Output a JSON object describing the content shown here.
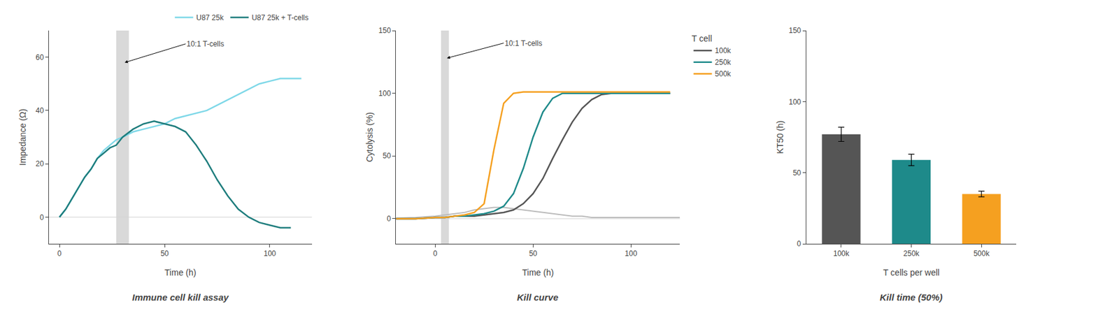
{
  "chart_data": [
    {
      "type": "line",
      "title": "Immune cell kill assay",
      "xlabel": "Time (h)",
      "ylabel": "Impedance (Ω)",
      "xlim": [
        -5,
        120
      ],
      "ylim": [
        -10,
        70
      ],
      "xticks": [
        0,
        50,
        100
      ],
      "yticks": [
        0,
        20,
        40,
        60
      ],
      "grid": false,
      "legend": "top",
      "band": [
        27,
        33
      ],
      "hline": 0,
      "annotations": [
        {
          "text": "10:1 T-cells",
          "x": 31,
          "y": 58,
          "text_x": 60,
          "text_y": 65
        }
      ],
      "series": [
        {
          "name": "U87 25k",
          "color": "#7fd8e8",
          "x": [
            0,
            3,
            6,
            9,
            12,
            15,
            18,
            21,
            24,
            27,
            30,
            35,
            40,
            45,
            50,
            55,
            60,
            65,
            70,
            75,
            80,
            85,
            90,
            95,
            100,
            105,
            110,
            115
          ],
          "values": [
            0,
            3,
            7,
            11,
            15,
            18,
            22,
            25,
            27,
            29,
            30,
            32,
            33,
            34,
            35,
            37,
            38,
            39,
            40,
            42,
            44,
            46,
            48,
            50,
            51,
            52,
            52,
            52
          ]
        },
        {
          "name": "U87 25k + T-cells",
          "color": "#1e7d7d",
          "x": [
            0,
            3,
            6,
            9,
            12,
            15,
            18,
            21,
            24,
            27,
            30,
            35,
            40,
            45,
            50,
            55,
            60,
            65,
            70,
            75,
            80,
            85,
            90,
            95,
            100,
            105,
            110
          ],
          "values": [
            0,
            3,
            7,
            11,
            15,
            18,
            22,
            24,
            26,
            27,
            30,
            33,
            35,
            36,
            35,
            34,
            32,
            27,
            21,
            14,
            8,
            3,
            0,
            -2,
            -3,
            -4,
            -4
          ]
        }
      ]
    },
    {
      "type": "line",
      "title": "Kill curve",
      "xlabel": "Time (h)",
      "ylabel": "Cytolysis (%)",
      "xlim": [
        -20,
        125
      ],
      "ylim": [
        -20,
        150
      ],
      "xticks": [
        0,
        50,
        100
      ],
      "yticks": [
        0,
        50,
        100,
        150
      ],
      "grid": false,
      "legend": "right",
      "legend_title": "T cell",
      "band": [
        3,
        7
      ],
      "hline": 0,
      "annotations": [
        {
          "text": "10:1 T-cells",
          "x": 6,
          "y": 128,
          "text_x": 35,
          "text_y": 140
        }
      ],
      "series": [
        {
          "color": "#bbbbbb",
          "x": [
            -20,
            -10,
            0,
            5,
            10,
            15,
            20,
            25,
            30,
            35,
            40,
            45,
            50,
            55,
            60,
            65,
            70,
            75,
            80,
            85,
            90,
            95,
            100,
            105,
            110,
            115,
            120,
            125
          ],
          "values": [
            0.5,
            1,
            2,
            3,
            4,
            5,
            7,
            8,
            9,
            9,
            8,
            7,
            6,
            5,
            4,
            3,
            2,
            2,
            1,
            1,
            1,
            1,
            1,
            1,
            1,
            1,
            1,
            1
          ]
        },
        {
          "name": "100k",
          "color": "#555555",
          "x": [
            -20,
            -10,
            0,
            5,
            10,
            15,
            20,
            25,
            30,
            35,
            40,
            45,
            50,
            55,
            60,
            65,
            70,
            75,
            80,
            85,
            90,
            95,
            100,
            105,
            110,
            115,
            120
          ],
          "values": [
            0,
            0,
            1,
            1,
            2,
            2,
            2,
            3,
            4,
            5,
            7,
            12,
            20,
            32,
            48,
            63,
            77,
            88,
            95,
            99,
            100,
            100,
            100,
            100,
            100,
            100,
            100
          ]
        },
        {
          "name": "250k",
          "color": "#1e8a8a",
          "x": [
            -20,
            -10,
            0,
            5,
            10,
            15,
            20,
            25,
            30,
            35,
            40,
            45,
            50,
            55,
            60,
            65,
            70,
            75,
            80,
            85,
            90,
            95,
            100,
            105,
            110,
            115,
            120
          ],
          "values": [
            0,
            0,
            1,
            1,
            2,
            2,
            3,
            4,
            6,
            10,
            20,
            40,
            65,
            85,
            96,
            100,
            100,
            100,
            100,
            100,
            100,
            100,
            100,
            100,
            100,
            100,
            100
          ]
        },
        {
          "name": "500k",
          "color": "#f5a020",
          "x": [
            -20,
            -10,
            0,
            5,
            10,
            15,
            20,
            25,
            30,
            35,
            40,
            45,
            50,
            55,
            60,
            65,
            70,
            75,
            80,
            85,
            90,
            95,
            100,
            105,
            110,
            115,
            120
          ],
          "values": [
            0,
            0,
            1,
            1,
            2,
            3,
            5,
            12,
            55,
            92,
            100,
            101,
            101,
            101,
            101,
            101,
            101,
            101,
            101,
            101,
            101,
            101,
            101,
            101,
            101,
            101,
            101
          ]
        }
      ]
    },
    {
      "type": "bar",
      "title": "Kill time (50%)",
      "xlabel": "T cells per well",
      "ylabel": "KT50 (h)",
      "categories": [
        "100k",
        "250k",
        "500k"
      ],
      "values": [
        77,
        59,
        35
      ],
      "errors": [
        5,
        4,
        2
      ],
      "colors": [
        "#555555",
        "#1e8a8a",
        "#f5a020"
      ],
      "ylim": [
        0,
        150
      ],
      "yticks": [
        0,
        50,
        100,
        150
      ],
      "grid": false
    }
  ]
}
